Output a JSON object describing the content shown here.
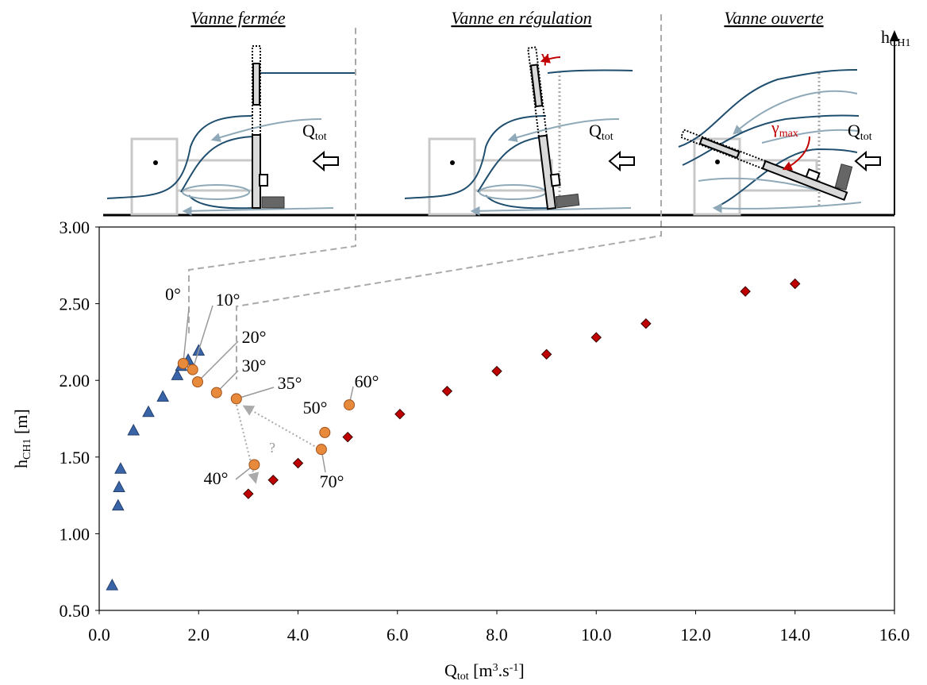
{
  "diagram": {
    "panels": [
      {
        "title": "Vanne fermée",
        "flow_label": [
          "Q",
          "tot"
        ]
      },
      {
        "title": "Vanne en régulation",
        "flow_label": [
          "Q",
          "tot"
        ],
        "angle_label": [
          "γ"
        ]
      },
      {
        "title": "Vanne ouverte",
        "flow_label": [
          "Q",
          "tot"
        ],
        "angle_label": [
          "γ",
          "max"
        ]
      }
    ],
    "axis_label": [
      "h",
      "CH1"
    ]
  },
  "chart_data": {
    "type": "scatter",
    "xlabel": [
      "Q",
      "tot",
      " [m",
      "3",
      ".s",
      "-1",
      "]"
    ],
    "ylabel": [
      "h",
      "CH1",
      " [m]"
    ],
    "xlim": [
      0,
      16
    ],
    "ylim": [
      0.5,
      3
    ],
    "xticks": [
      {
        "value": 0,
        "label": "0.0"
      },
      {
        "value": 2,
        "label": "2.0"
      },
      {
        "value": 4,
        "label": "4.0"
      },
      {
        "value": 6,
        "label": "6.0"
      },
      {
        "value": 8,
        "label": "8.0"
      },
      {
        "value": 10,
        "label": "10.0"
      },
      {
        "value": 12,
        "label": "12.0"
      },
      {
        "value": 14,
        "label": "14.0"
      },
      {
        "value": 16,
        "label": "16.0"
      }
    ],
    "yticks": [
      {
        "value": 0.5,
        "label": "0.50"
      },
      {
        "value": 1,
        "label": "1.00"
      },
      {
        "value": 1.5,
        "label": "1.50"
      },
      {
        "value": 2,
        "label": "2.00"
      },
      {
        "value": 2.5,
        "label": "2.50"
      },
      {
        "value": 3,
        "label": "3.00"
      }
    ],
    "grid": false,
    "series": [
      {
        "marker": "triangle",
        "color": "#3a64a8",
        "x": [
          0.26,
          0.38,
          0.4,
          0.43,
          0.69,
          0.99,
          1.28,
          1.57,
          1.65,
          1.79,
          2.0
        ],
        "values": [
          0.66,
          1.18,
          1.3,
          1.42,
          1.67,
          1.79,
          1.89,
          2.03,
          2.09,
          2.13,
          2.19
        ]
      },
      {
        "marker": "circle",
        "color": "#e88a3c",
        "x": [
          1.69,
          1.88,
          1.98,
          2.36,
          2.76,
          3.12,
          4.54,
          5.03,
          4.47
        ],
        "values": [
          2.11,
          2.07,
          1.99,
          1.92,
          1.88,
          1.45,
          1.66,
          1.84,
          1.55
        ],
        "point_labels": [
          "0°",
          "10°",
          "20°",
          "30°",
          "35°",
          "40°",
          "50°",
          "60°",
          "70°"
        ]
      },
      {
        "marker": "diamond",
        "color": "#c00000",
        "x": [
          3.0,
          3.5,
          4.0,
          5.0,
          6.05,
          7.0,
          8.0,
          9.0,
          10.0,
          11.0,
          13.0,
          14.0
        ],
        "values": [
          1.26,
          1.35,
          1.46,
          1.63,
          1.78,
          1.93,
          2.06,
          2.17,
          2.28,
          2.37,
          2.58,
          2.63
        ]
      }
    ],
    "annotations": [
      "?"
    ]
  }
}
